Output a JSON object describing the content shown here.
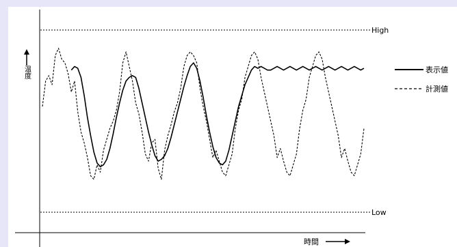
{
  "chart_data": {
    "type": "line",
    "xlabel": "時間",
    "ylabel": "温度",
    "ylim": [
      0,
      100
    ],
    "reference_lines": [
      {
        "label": "High",
        "value": 100
      },
      {
        "label": "Low",
        "value": 0
      }
    ],
    "legend_position": "right",
    "legend": [
      {
        "label": "表示値",
        "style": "solid"
      },
      {
        "label": "計測値",
        "style": "dashed"
      }
    ],
    "x": [
      0,
      4,
      6,
      8,
      10,
      12,
      14,
      16,
      18,
      20,
      22,
      24,
      26,
      28,
      30,
      32,
      34,
      36,
      38,
      40,
      42,
      44,
      46,
      48,
      50,
      52,
      54,
      56,
      58,
      60,
      62,
      64,
      66,
      68,
      70,
      72,
      74,
      76,
      78,
      80,
      82,
      84,
      86,
      88,
      90,
      92,
      94,
      96,
      98,
      100,
      102,
      104,
      106,
      108,
      110,
      112,
      114,
      116,
      118,
      120,
      122,
      124,
      126,
      128,
      130,
      132,
      134,
      136,
      138,
      140,
      142,
      144,
      146,
      148,
      150,
      152,
      154,
      156,
      158,
      160,
      162,
      164,
      166,
      168,
      170,
      172,
      174,
      176,
      178,
      180,
      182,
      184,
      186,
      188,
      190,
      192,
      194,
      196,
      198,
      200
    ],
    "series": [
      {
        "name": "表示値",
        "style": "solid",
        "x": [
          18,
          20,
          22,
          24,
          26,
          28,
          30,
          32,
          34,
          36,
          38,
          40,
          42,
          44,
          46,
          48,
          50,
          52,
          54,
          56,
          58,
          60,
          62,
          64,
          66,
          68,
          70,
          72,
          74,
          76,
          78,
          80,
          82,
          84,
          86,
          88,
          90,
          92,
          94,
          96,
          98,
          100,
          102,
          104,
          106,
          108,
          110,
          112,
          114,
          116,
          118,
          120,
          122,
          124,
          126,
          128,
          130,
          132,
          134,
          136,
          138,
          140,
          142,
          144,
          146,
          148,
          150,
          152,
          154,
          156,
          158,
          160,
          162,
          164,
          166,
          168,
          170,
          172,
          174,
          176,
          178,
          180,
          182,
          184,
          186,
          188,
          190,
          192,
          194,
          196,
          198,
          200
        ],
        "values": [
          78,
          80,
          79,
          74,
          64,
          52,
          42,
          33,
          27,
          25,
          26,
          29,
          35,
          43,
          52,
          60,
          67,
          72,
          74,
          75,
          74,
          68,
          60,
          52,
          44,
          37,
          31,
          28,
          29,
          31,
          35,
          41,
          48,
          55,
          62,
          69,
          75,
          80,
          82,
          79,
          72,
          63,
          53,
          44,
          36,
          30,
          27,
          26,
          28,
          34,
          42,
          50,
          58,
          64,
          70,
          74,
          78,
          80,
          79,
          80,
          79,
          78,
          78,
          79,
          80,
          79,
          78,
          79,
          80,
          79,
          78,
          79,
          80,
          79,
          78,
          79,
          80,
          79,
          78,
          79,
          80,
          79,
          78,
          79,
          80,
          79,
          78,
          79,
          80,
          79,
          78,
          79
        ]
      },
      {
        "name": "計測値",
        "style": "dashed",
        "x": [
          0,
          2,
          4,
          6,
          8,
          10,
          12,
          14,
          16,
          18,
          20,
          22,
          24,
          26,
          28,
          30,
          32,
          34,
          36,
          38,
          40,
          42,
          44,
          46,
          48,
          50,
          52,
          54,
          56,
          58,
          60,
          62,
          64,
          66,
          68,
          70,
          72,
          74,
          76,
          78,
          80,
          82,
          84,
          86,
          88,
          90,
          92,
          94,
          96,
          98,
          100,
          102,
          104,
          106,
          108,
          110,
          112,
          114,
          116,
          118,
          120,
          122,
          124,
          126,
          128,
          130,
          132,
          134,
          136,
          138,
          140,
          142,
          144,
          146,
          148,
          150,
          152,
          154,
          156,
          158,
          160,
          162,
          164,
          166,
          168,
          170,
          172,
          174,
          176,
          178,
          180,
          182,
          184,
          186,
          188,
          190,
          192,
          194,
          196,
          198,
          200
        ],
        "values": [
          58,
          72,
          75,
          70,
          86,
          90,
          84,
          82,
          76,
          66,
          72,
          55,
          44,
          38,
          30,
          20,
          18,
          26,
          22,
          34,
          40,
          46,
          50,
          56,
          66,
          82,
          88,
          80,
          72,
          60,
          54,
          44,
          32,
          28,
          38,
          40,
          24,
          18,
          34,
          42,
          48,
          55,
          60,
          68,
          80,
          86,
          88,
          86,
          82,
          68,
          58,
          50,
          40,
          30,
          34,
          28,
          22,
          20,
          26,
          32,
          46,
          56,
          62,
          74,
          80,
          86,
          88,
          84,
          74,
          66,
          58,
          50,
          42,
          30,
          35,
          28,
          22,
          20,
          26,
          32,
          46,
          56,
          62,
          74,
          80,
          86,
          88,
          84,
          74,
          66,
          58,
          50,
          42,
          30,
          35,
          28,
          22,
          20,
          26,
          32,
          46
        ]
      }
    ]
  }
}
